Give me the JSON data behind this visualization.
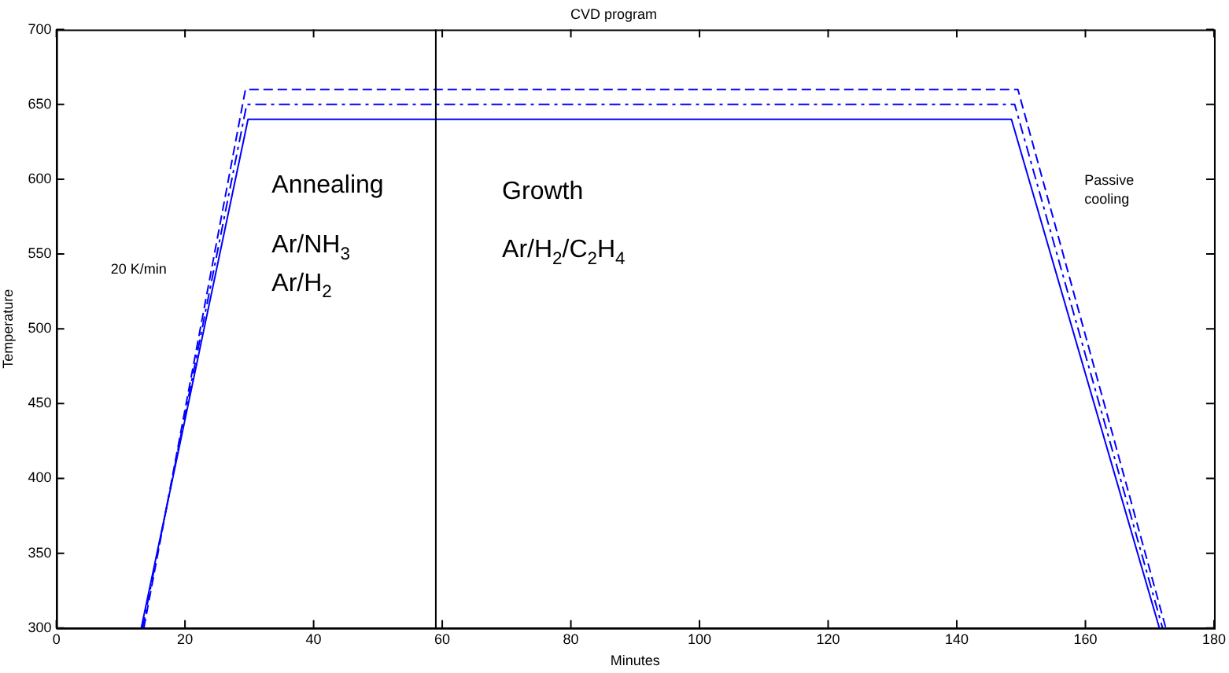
{
  "chart_data": {
    "type": "line",
    "title": "CVD program",
    "xlabel": "Minutes",
    "ylabel": "Temperature",
    "xlim": [
      0,
      180
    ],
    "xticks": [
      0,
      20,
      40,
      60,
      80,
      100,
      120,
      140,
      160,
      180
    ],
    "ylim": [
      300,
      700
    ],
    "yticks": [
      300,
      350,
      400,
      450,
      500,
      550,
      600,
      650,
      700
    ],
    "grid": false,
    "legend": false,
    "marker": "none",
    "series": [
      {
        "color": "#0000ff",
        "line_style": "solid",
        "x": [
          13.2,
          29.8,
          148.5,
          171.5
        ],
        "values": [
          300,
          640,
          640,
          300
        ]
      },
      {
        "color": "#0000ff",
        "line_style": "dotted",
        "x": [
          13.4,
          29.6,
          149,
          172
        ],
        "values": [
          300,
          650,
          650,
          300
        ]
      },
      {
        "color": "#0000ff",
        "line_style": "dashed",
        "x": [
          13.6,
          29.4,
          149.5,
          172.5
        ],
        "values": [
          300,
          660,
          660,
          300
        ]
      }
    ],
    "ref_lines": [
      {
        "axis": "x",
        "value": 59,
        "color": "#000000"
      }
    ],
    "annotations": [
      "Annealing",
      "Ar/NH$_{3}$",
      "Ar/H$_{2}$",
      "Growth",
      "Ar/H$_{2}$/C$_{2}$H$_{4}$",
      "20 K/min",
      "Passive cooling"
    ]
  }
}
